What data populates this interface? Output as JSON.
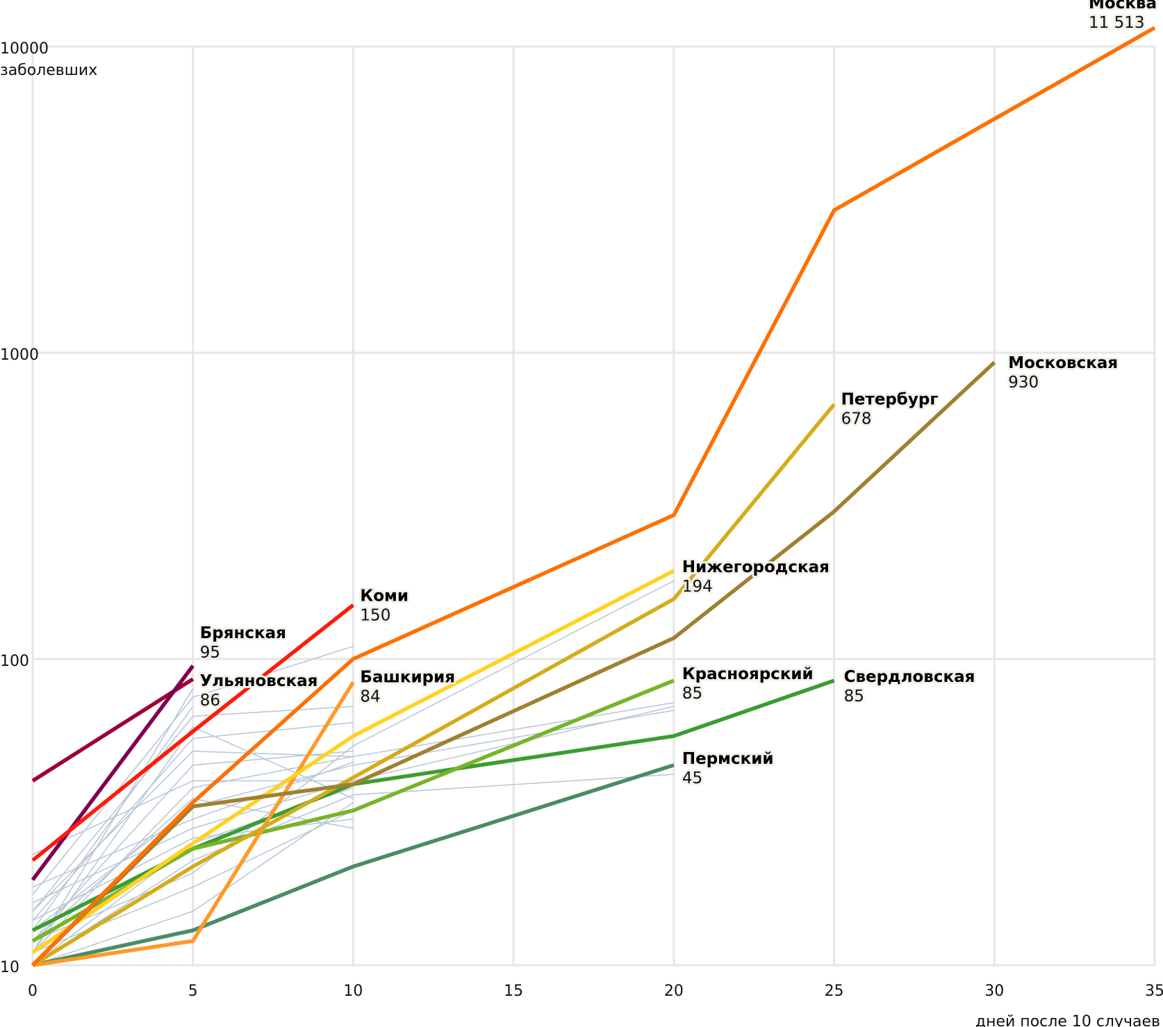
{
  "chart_data": {
    "type": "line",
    "yscale": "log",
    "xlabel": "дней после 10 случаев",
    "ylabel": "заболевших",
    "xlim": [
      0,
      35
    ],
    "ylim": [
      10,
      10000
    ],
    "grid": true,
    "x_ticks": [
      "0",
      "5",
      "10",
      "15",
      "20",
      "25",
      "30",
      "35"
    ],
    "x_tick_values": [
      0,
      5,
      10,
      15,
      20,
      25,
      30,
      35
    ],
    "y_ticks": [
      "10",
      "100",
      "1000",
      "10000"
    ],
    "y_tick_values": [
      10,
      100,
      1000,
      10000
    ],
    "series": [
      {
        "name": "Москва",
        "label_value": "11 513",
        "color": "#ff7000",
        "x": [
          0,
          5,
          10,
          20,
          25,
          30,
          35
        ],
        "y": [
          10,
          34,
          100,
          295,
          2920,
          5800,
          11513
        ]
      },
      {
        "name": "Московская",
        "label_value": "930",
        "color": "#a08030",
        "x": [
          0,
          5,
          10,
          20,
          25,
          30
        ],
        "y": [
          10,
          33,
          39,
          117,
          303,
          930
        ]
      },
      {
        "name": "Петербург",
        "label_value": "678",
        "color": "#d4ac1a",
        "x": [
          0,
          5,
          10,
          20,
          25
        ],
        "y": [
          10,
          21,
          41,
          157,
          678
        ]
      },
      {
        "name": "Нижегородская",
        "label_value": "194",
        "color": "#ffd21f",
        "x": [
          0,
          5,
          10,
          20
        ],
        "y": [
          11,
          25,
          56,
          194
        ]
      },
      {
        "name": "Коми",
        "label_value": "150",
        "color": "#ff1a0a",
        "x": [
          0,
          5,
          10
        ],
        "y": [
          22,
          58,
          150
        ]
      },
      {
        "name": "Брянская",
        "label_value": "95",
        "color": "#800050",
        "x": [
          0,
          5
        ],
        "y": [
          19,
          95
        ]
      },
      {
        "name": "Ульяновская",
        "label_value": "86",
        "color": "#a00030",
        "x": [
          0,
          5
        ],
        "y": [
          40,
          86
        ]
      },
      {
        "name": "Башкирия",
        "label_value": "84",
        "color": "#ff9a28",
        "x": [
          0,
          5,
          10
        ],
        "y": [
          10,
          12,
          84
        ]
      },
      {
        "name": "Красноярский",
        "label_value": "85",
        "color": "#78b428",
        "x": [
          0,
          5,
          10,
          20
        ],
        "y": [
          12,
          24,
          32,
          85
        ]
      },
      {
        "name": "Свердловская",
        "label_value": "85",
        "color": "#3c9c32",
        "x": [
          0,
          5,
          10,
          20,
          25
        ],
        "y": [
          13,
          24,
          39,
          56,
          85
        ]
      },
      {
        "name": "Пермский",
        "label_value": "45",
        "color": "#4a8c64",
        "x": [
          0,
          5,
          10,
          20
        ],
        "y": [
          10,
          13,
          21,
          45
        ]
      }
    ],
    "background_series_color": "#b8c8d8",
    "background_series": [
      {
        "x": [
          0,
          5,
          10
        ],
        "y": [
          23,
          40,
          40
        ]
      },
      {
        "x": [
          0,
          5,
          10
        ],
        "y": [
          17,
          75,
          110
        ]
      },
      {
        "x": [
          0,
          5,
          10
        ],
        "y": [
          15,
          65,
          70
        ]
      },
      {
        "x": [
          0,
          5,
          10
        ],
        "y": [
          14,
          55,
          62
        ]
      },
      {
        "x": [
          0,
          5,
          10
        ],
        "y": [
          12,
          45,
          50
        ]
      },
      {
        "x": [
          0,
          5,
          10,
          20
        ],
        "y": [
          11,
          38,
          48,
          72
        ]
      },
      {
        "x": [
          0,
          5,
          10,
          20
        ],
        "y": [
          13,
          33,
          45,
          68
        ]
      },
      {
        "x": [
          0,
          5,
          10,
          20
        ],
        "y": [
          16,
          28,
          40,
          70
        ]
      },
      {
        "x": [
          0,
          5,
          10,
          20
        ],
        "y": [
          10,
          22,
          36,
          42
        ]
      },
      {
        "x": [
          0,
          5,
          10,
          20
        ],
        "y": [
          12,
          20,
          52,
          180
        ]
      },
      {
        "x": [
          0,
          5,
          10
        ],
        "y": [
          11,
          18,
          32
        ]
      },
      {
        "x": [
          0,
          5,
          10
        ],
        "y": [
          10,
          15,
          34
        ]
      },
      {
        "x": [
          0,
          5,
          10
        ],
        "y": [
          14,
          26,
          30
        ]
      },
      {
        "x": [
          0,
          5,
          10
        ],
        "y": [
          18,
          30,
          46
        ]
      },
      {
        "x": [
          0,
          5,
          10
        ],
        "y": [
          15,
          50,
          48
        ]
      },
      {
        "x": [
          0,
          5,
          10
        ],
        "y": [
          11,
          60,
          35
        ]
      },
      {
        "x": [
          0,
          5,
          10
        ],
        "y": [
          12,
          35,
          28
        ]
      },
      {
        "x": [
          0,
          5,
          10
        ],
        "y": [
          10,
          25,
          38
        ]
      },
      {
        "x": [
          0,
          5
        ],
        "y": [
          13,
          70
        ]
      },
      {
        "x": [
          0,
          5
        ],
        "y": [
          11,
          80
        ]
      }
    ]
  }
}
